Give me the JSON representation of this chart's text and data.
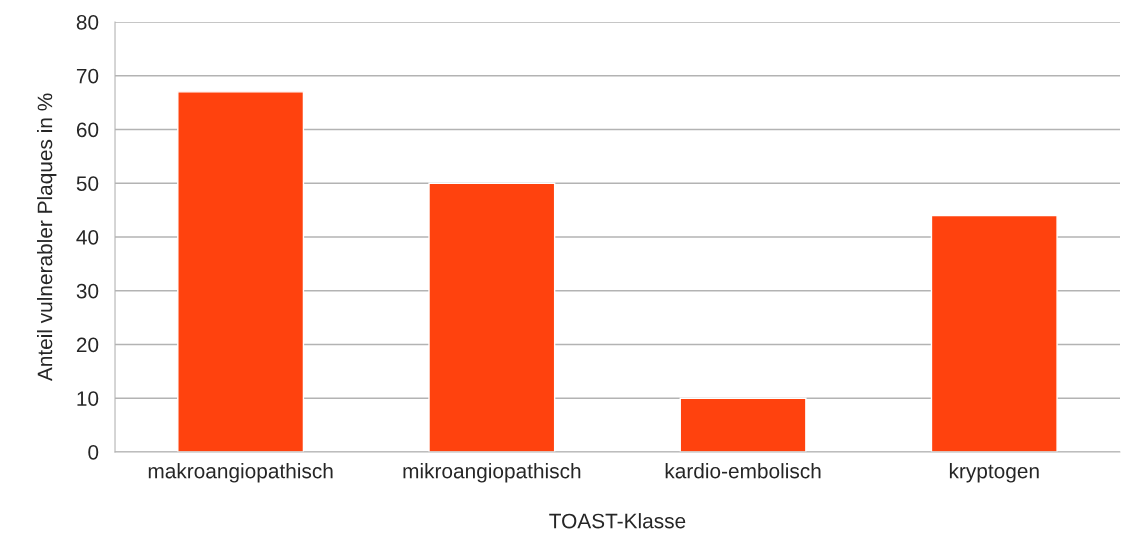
{
  "chart_data": {
    "type": "bar",
    "xlabel": "TOAST-Klasse",
    "ylabel": "Anteil vulnerabler Plaques in %",
    "categories": [
      "makroangiopathisch",
      "mikroangiopathisch",
      "kardio-embolisch",
      "kryptogen"
    ],
    "values": [
      67,
      50,
      10,
      44
    ],
    "color": "#ff420e",
    "ylim": [
      0,
      80
    ],
    "yticks": [
      0,
      10,
      20,
      30,
      40,
      50,
      60,
      70,
      80
    ],
    "grid": "y",
    "legend": false
  }
}
